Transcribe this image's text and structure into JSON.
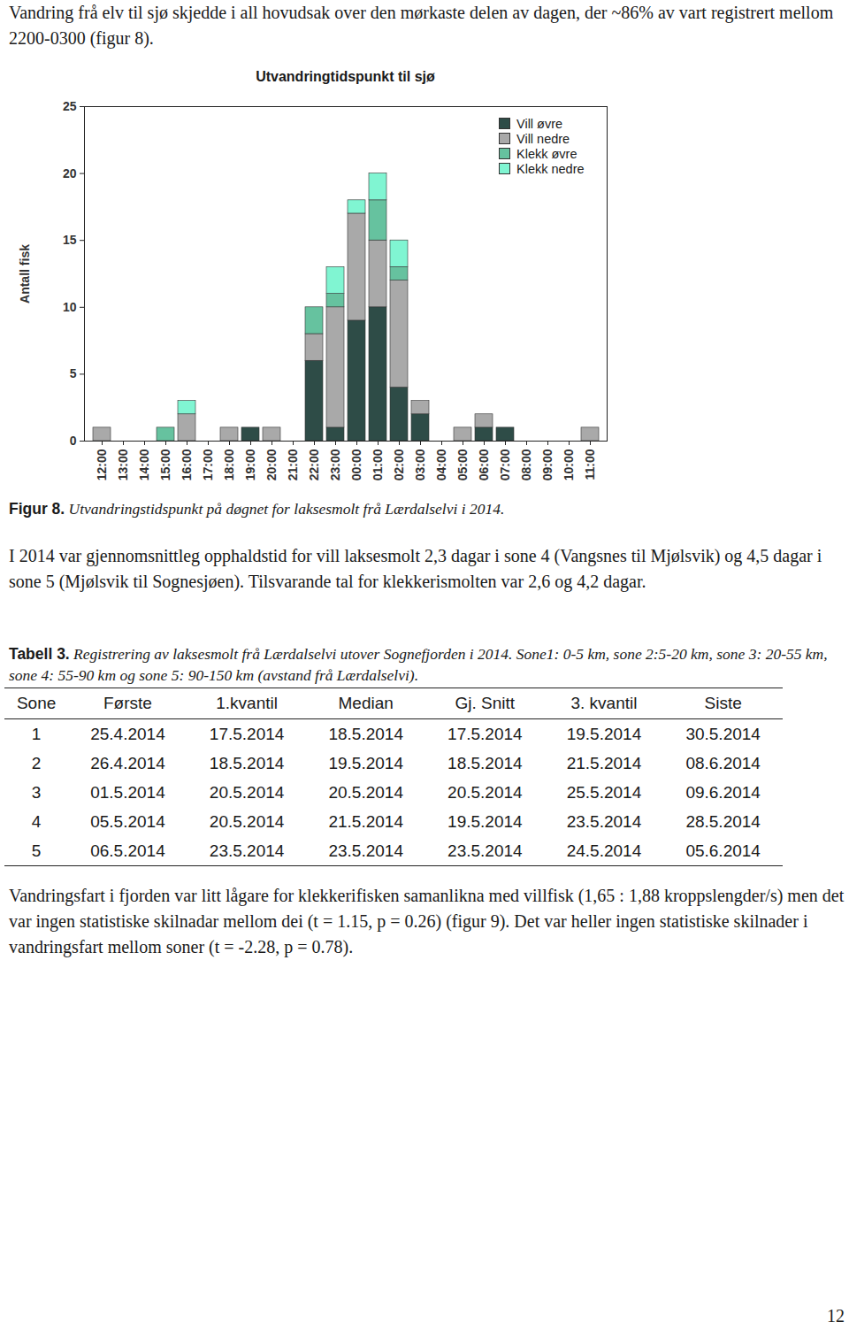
{
  "text_top": "Vandring frå elv til sjø skjedde i all hovudsak over den mørkaste delen av dagen, der ~86% av vart registrert mellom 2200-0300 (figur 8).",
  "chart_data": {
    "type": "bar",
    "stacked": true,
    "title": "Utvandringtidspunkt til sjø",
    "y_label": "Antall fisk",
    "categories": [
      "12:00",
      "13:00",
      "14:00",
      "15:00",
      "16:00",
      "17:00",
      "18:00",
      "19:00",
      "20:00",
      "21:00",
      "22:00",
      "23:00",
      "00:00",
      "01:00",
      "02:00",
      "03:00",
      "04:00",
      "05:00",
      "06:00",
      "07:00",
      "08:00",
      "09:00",
      "10:00",
      "11:00"
    ],
    "series": [
      {
        "name": "Vill øvre",
        "color": "#2e4c47",
        "values": [
          0,
          0,
          0,
          0,
          0,
          0,
          0,
          1,
          0,
          0,
          6,
          1,
          9,
          10,
          4,
          2,
          0,
          0,
          1,
          1,
          0,
          0,
          0,
          0
        ]
      },
      {
        "name": "Vill nedre",
        "color": "#a9a9a9",
        "values": [
          1,
          0,
          0,
          0,
          2,
          0,
          1,
          0,
          1,
          0,
          2,
          9,
          8,
          5,
          8,
          1,
          0,
          1,
          1,
          0,
          0,
          0,
          0,
          1
        ]
      },
      {
        "name": "Klekk øvre",
        "color": "#66c29f",
        "values": [
          0,
          0,
          0,
          1,
          0,
          0,
          0,
          0,
          0,
          0,
          2,
          1,
          0,
          3,
          1,
          0,
          0,
          0,
          0,
          0,
          0,
          0,
          0,
          0
        ]
      },
      {
        "name": "Klekk nedre",
        "color": "#80f5d2",
        "values": [
          0,
          0,
          0,
          0,
          1,
          0,
          0,
          0,
          0,
          0,
          0,
          2,
          1,
          2,
          2,
          0,
          0,
          0,
          0,
          0,
          0,
          0,
          0,
          0
        ]
      }
    ],
    "ylim": [
      0,
      25
    ],
    "yticks": [
      0,
      5,
      10,
      15,
      20,
      25
    ],
    "grid": false,
    "legend": "top-right"
  },
  "figure_caption": {
    "label": "Figur 8.",
    "text": "Utvandringstidspunkt på døgnet for laksesmolt frå Lærdalselvi i 2014."
  },
  "text_middle": "I 2014 var gjennomsnittleg opphaldstid for vill laksesmolt 2,3 dagar i sone 4 (Vangsnes til Mjølsvik) og 4,5 dagar i sone 5 (Mjølsvik til Sognesjøen). Tilsvarande tal for klekkerismolten var 2,6 og 4,2 dagar.",
  "table_caption": {
    "label": "Tabell 3.",
    "text": "Registrering av laksesmolt frå Lærdalselvi utover Sognefjorden i 2014. Sone1: 0-5 km, sone 2:5-20 km, sone 3: 20-55 km, sone 4: 55-90 km og sone 5: 90-150 km (avstand frå Lærdalselvi)."
  },
  "table": {
    "header": [
      "Sone",
      "Første",
      "1.kvantil",
      "Median",
      "Gj. Snitt",
      "3. kvantil",
      "Siste"
    ],
    "rows": [
      [
        "1",
        "25.4.2014",
        "17.5.2014",
        "18.5.2014",
        "17.5.2014",
        "19.5.2014",
        "30.5.2014"
      ],
      [
        "2",
        "26.4.2014",
        "18.5.2014",
        "19.5.2014",
        "18.5.2014",
        "21.5.2014",
        "08.6.2014"
      ],
      [
        "3",
        "01.5.2014",
        "20.5.2014",
        "20.5.2014",
        "20.5.2014",
        "25.5.2014",
        "09.6.2014"
      ],
      [
        "4",
        "05.5.2014",
        "20.5.2014",
        "21.5.2014",
        "19.5.2014",
        "23.5.2014",
        "28.5.2014"
      ],
      [
        "5",
        "06.5.2014",
        "23.5.2014",
        "23.5.2014",
        "23.5.2014",
        "24.5.2014",
        "05.6.2014"
      ]
    ]
  },
  "text_bottom": "Vandringsfart i fjorden var litt lågare for klekkerifisken samanlikna med villfisk (1,65 : 1,88 kroppslengder/s) men det var ingen statistiske skilnadar mellom dei (t = 1.15, p = 0.26) (figur 9). Det var heller ingen statistiske skilnader i vandringsfart mellom soner (t = -2.28, p = 0.78).",
  "page_number": "12"
}
